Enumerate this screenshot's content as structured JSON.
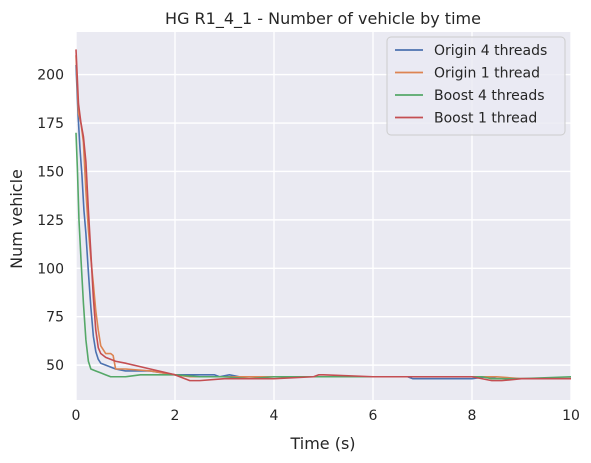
{
  "chart_data": {
    "type": "line",
    "title": "HG R1_4_1 - Number of vehicle by time",
    "xlabel": "Time (s)",
    "ylabel": "Num vehicle",
    "xlim": [
      0,
      10
    ],
    "ylim": [
      32,
      222
    ],
    "xticks": [
      0,
      2,
      4,
      6,
      8,
      10
    ],
    "yticks": [
      50,
      75,
      100,
      125,
      150,
      175,
      200
    ],
    "grid": true,
    "legend_position": "top-right",
    "background_color": "#eaeaf2",
    "series": [
      {
        "name": "Origin 4 threads",
        "color": "#4c72b0",
        "points": [
          [
            0.0,
            205
          ],
          [
            0.04,
            180
          ],
          [
            0.08,
            162
          ],
          [
            0.12,
            148
          ],
          [
            0.16,
            130
          ],
          [
            0.2,
            118
          ],
          [
            0.25,
            98
          ],
          [
            0.3,
            80
          ],
          [
            0.35,
            65
          ],
          [
            0.4,
            57
          ],
          [
            0.45,
            53
          ],
          [
            0.5,
            51
          ],
          [
            0.6,
            50
          ],
          [
            0.8,
            48
          ],
          [
            1.0,
            47
          ],
          [
            1.5,
            47
          ],
          [
            2.0,
            45
          ],
          [
            2.5,
            45
          ],
          [
            2.8,
            45
          ],
          [
            2.9,
            44
          ],
          [
            3.1,
            45
          ],
          [
            3.3,
            44
          ],
          [
            4.0,
            44
          ],
          [
            5.0,
            44
          ],
          [
            6.0,
            44
          ],
          [
            6.7,
            44
          ],
          [
            6.8,
            43
          ],
          [
            7.5,
            43
          ],
          [
            8.0,
            43
          ],
          [
            8.3,
            44
          ],
          [
            8.5,
            43
          ],
          [
            9.0,
            43
          ],
          [
            10.0,
            43
          ]
        ]
      },
      {
        "name": "Origin 1 thread",
        "color": "#dd8452",
        "points": [
          [
            0.0,
            210
          ],
          [
            0.05,
            180
          ],
          [
            0.1,
            175
          ],
          [
            0.15,
            165
          ],
          [
            0.2,
            140
          ],
          [
            0.25,
            120
          ],
          [
            0.3,
            105
          ],
          [
            0.35,
            92
          ],
          [
            0.4,
            78
          ],
          [
            0.45,
            68
          ],
          [
            0.5,
            60
          ],
          [
            0.6,
            56
          ],
          [
            0.7,
            56
          ],
          [
            0.75,
            55
          ],
          [
            0.8,
            48
          ],
          [
            1.0,
            48
          ],
          [
            1.5,
            47
          ],
          [
            2.0,
            45
          ],
          [
            2.3,
            44
          ],
          [
            3.0,
            44
          ],
          [
            4.0,
            44
          ],
          [
            5.0,
            44
          ],
          [
            6.0,
            44
          ],
          [
            7.0,
            44
          ],
          [
            8.0,
            44
          ],
          [
            8.5,
            44
          ],
          [
            9.0,
            43
          ],
          [
            10.0,
            43
          ]
        ]
      },
      {
        "name": "Boost 4 threads",
        "color": "#55a868",
        "points": [
          [
            0.0,
            170
          ],
          [
            0.03,
            150
          ],
          [
            0.06,
            125
          ],
          [
            0.1,
            105
          ],
          [
            0.15,
            82
          ],
          [
            0.2,
            63
          ],
          [
            0.25,
            52
          ],
          [
            0.3,
            48
          ],
          [
            0.4,
            47
          ],
          [
            0.5,
            46
          ],
          [
            0.6,
            45
          ],
          [
            0.7,
            44
          ],
          [
            0.8,
            44
          ],
          [
            0.9,
            44
          ],
          [
            1.0,
            44
          ],
          [
            1.3,
            45
          ],
          [
            1.6,
            45
          ],
          [
            2.0,
            45
          ],
          [
            2.5,
            44
          ],
          [
            3.0,
            44
          ],
          [
            3.5,
            43
          ],
          [
            4.0,
            44
          ],
          [
            5.0,
            44
          ],
          [
            6.0,
            44
          ],
          [
            7.0,
            44
          ],
          [
            8.0,
            44
          ],
          [
            8.2,
            44
          ],
          [
            8.4,
            43
          ],
          [
            9.0,
            43
          ],
          [
            10.0,
            44
          ]
        ]
      },
      {
        "name": "Boost 1 thread",
        "color": "#c44e52",
        "points": [
          [
            0.0,
            213
          ],
          [
            0.05,
            185
          ],
          [
            0.1,
            175
          ],
          [
            0.15,
            168
          ],
          [
            0.2,
            155
          ],
          [
            0.25,
            130
          ],
          [
            0.3,
            108
          ],
          [
            0.35,
            85
          ],
          [
            0.4,
            68
          ],
          [
            0.45,
            59
          ],
          [
            0.5,
            56
          ],
          [
            0.6,
            54
          ],
          [
            0.8,
            52
          ],
          [
            1.0,
            51
          ],
          [
            1.5,
            48
          ],
          [
            2.0,
            45
          ],
          [
            2.3,
            42
          ],
          [
            2.5,
            42
          ],
          [
            3.0,
            43
          ],
          [
            4.0,
            43
          ],
          [
            4.8,
            44
          ],
          [
            4.9,
            45
          ],
          [
            5.0,
            45
          ],
          [
            6.0,
            44
          ],
          [
            7.0,
            44
          ],
          [
            8.0,
            44
          ],
          [
            8.4,
            42
          ],
          [
            8.6,
            42
          ],
          [
            9.0,
            43
          ],
          [
            10.0,
            43
          ]
        ]
      }
    ]
  }
}
